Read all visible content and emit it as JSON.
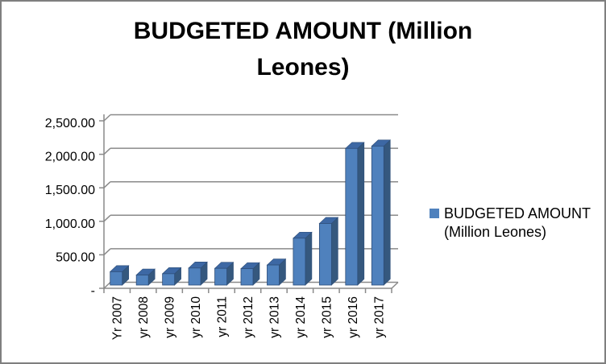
{
  "window": {
    "background": "#FFFFFF",
    "border_color": "#7F7F7F"
  },
  "title": {
    "text": "BUDGETED AMOUNT (Million Leones)",
    "line1": "BUDGETED AMOUNT (Million",
    "line2": "Leones)"
  },
  "legend": {
    "label": "BUDGETED AMOUNT (Million Leones)",
    "marker_color": "#4F81BD",
    "position": "right"
  },
  "chart_data": {
    "type": "bar",
    "style": "3d-column",
    "title": "BUDGETED AMOUNT (Million Leones)",
    "categories": [
      "Yr 2007",
      "yr 2008",
      "yr 2009",
      "yr 2010",
      "yr 2011",
      "yr 2012",
      "yr 2013",
      "yr 2014",
      "yr 2015",
      "yr 2016",
      "yr 2017"
    ],
    "series": [
      {
        "name": "BUDGETED AMOUNT (Million Leones)",
        "values": [
          200,
          150,
          170,
          255,
          250,
          245,
          300,
          700,
          920,
          2040,
          2075
        ]
      }
    ],
    "xlabel": "",
    "ylabel": "",
    "ylim": [
      0,
      2500
    ],
    "ytick_step": 500,
    "ytick_labels": [
      "-",
      "500.00",
      "1,000.00",
      "1,500.00",
      "2,000.00",
      "2,500.00"
    ],
    "grid": true,
    "legend_position": "right",
    "colors": {
      "bar_front": "#4F81BD",
      "bar_side": "#35587E",
      "bar_top": "#3D68A4",
      "bar_outline": "#2E4E79",
      "gridline": "#8A8A8A",
      "axis": "#8A8A8A",
      "text": "#000000"
    }
  }
}
